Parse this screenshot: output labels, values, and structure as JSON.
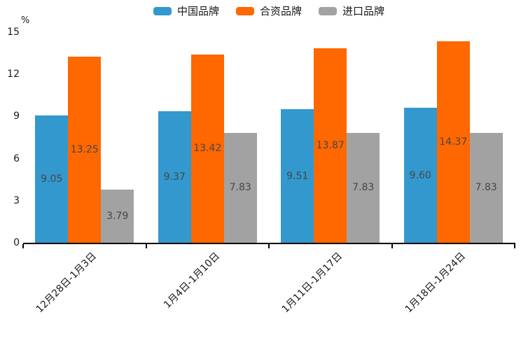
{
  "chart_data": {
    "type": "bar",
    "title": "",
    "unit_label": "%",
    "xlabel": "",
    "ylabel": "%",
    "categories": [
      "12月28日-1月3日",
      "1月4日-1月10日",
      "1月11日-1月17日",
      "1月18日-1月24日"
    ],
    "series": [
      {
        "name": "中国品牌",
        "color": "#3398CD",
        "values": [
          9.05,
          9.37,
          9.51,
          9.6
        ]
      },
      {
        "name": "合资品牌",
        "color": "#FF6700",
        "values": [
          13.25,
          13.42,
          13.87,
          14.37
        ]
      },
      {
        "name": "进口品牌",
        "color": "#A2A2A2",
        "values": [
          3.79,
          7.83,
          7.83,
          7.83
        ]
      }
    ],
    "ylim": [
      0,
      15
    ],
    "yticks": [
      0,
      3,
      6,
      9,
      12,
      15
    ],
    "legend_position": "top-center",
    "grid": false,
    "value_labels": "inside-center",
    "value_label_decimals": 2,
    "x_tick_rotation_deg": 45
  },
  "styles": {
    "background": "#FFFFFF",
    "axis_color": "#000000",
    "tick_label_color": "#1A1A1A",
    "value_label_color": "#474747"
  }
}
